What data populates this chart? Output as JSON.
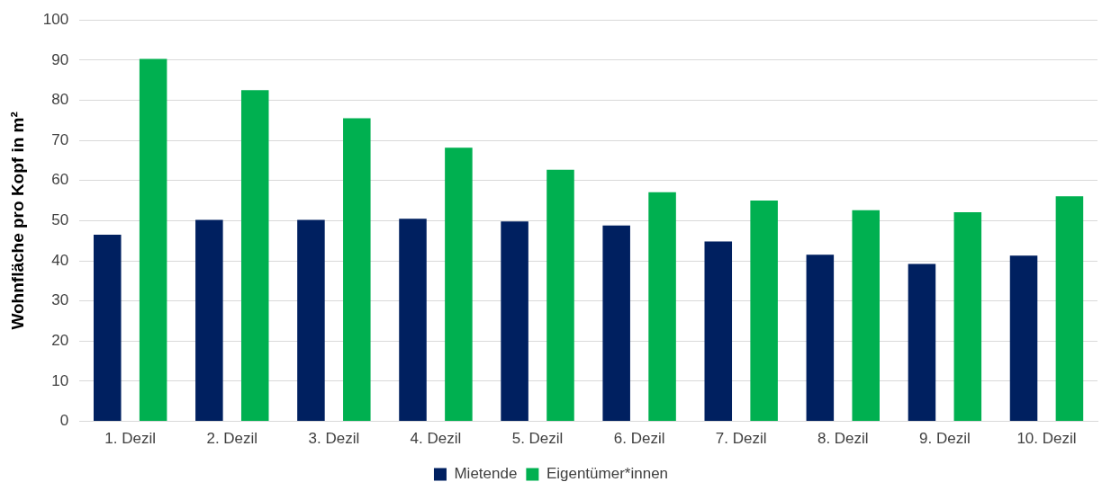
{
  "chart_data": {
    "type": "bar",
    "ylabel": "Wohnfläche pro Kopf in m²",
    "categories": [
      "1. Dezil",
      "2. Dezil",
      "3. Dezil",
      "4. Dezil",
      "5. Dezil",
      "6. Dezil",
      "7. Dezil",
      "8. Dezil",
      "9. Dezil",
      "10. Dezil"
    ],
    "series": [
      {
        "name": "Mietende",
        "color": "#002060",
        "values": [
          46.5,
          50.2,
          50.2,
          50.5,
          49.8,
          48.8,
          44.8,
          41.5,
          39.2,
          41.3
        ]
      },
      {
        "name": "Eigentümer*innen",
        "color": "#00b050",
        "values": [
          90.3,
          82.5,
          75.5,
          68.2,
          62.7,
          57.1,
          55.0,
          52.6,
          52.1,
          56.1
        ]
      }
    ],
    "ylim": [
      0,
      100
    ],
    "yticks": [
      0,
      10,
      20,
      30,
      40,
      50,
      60,
      70,
      80,
      90,
      100
    ],
    "grid": "y",
    "legend": "bottom"
  }
}
